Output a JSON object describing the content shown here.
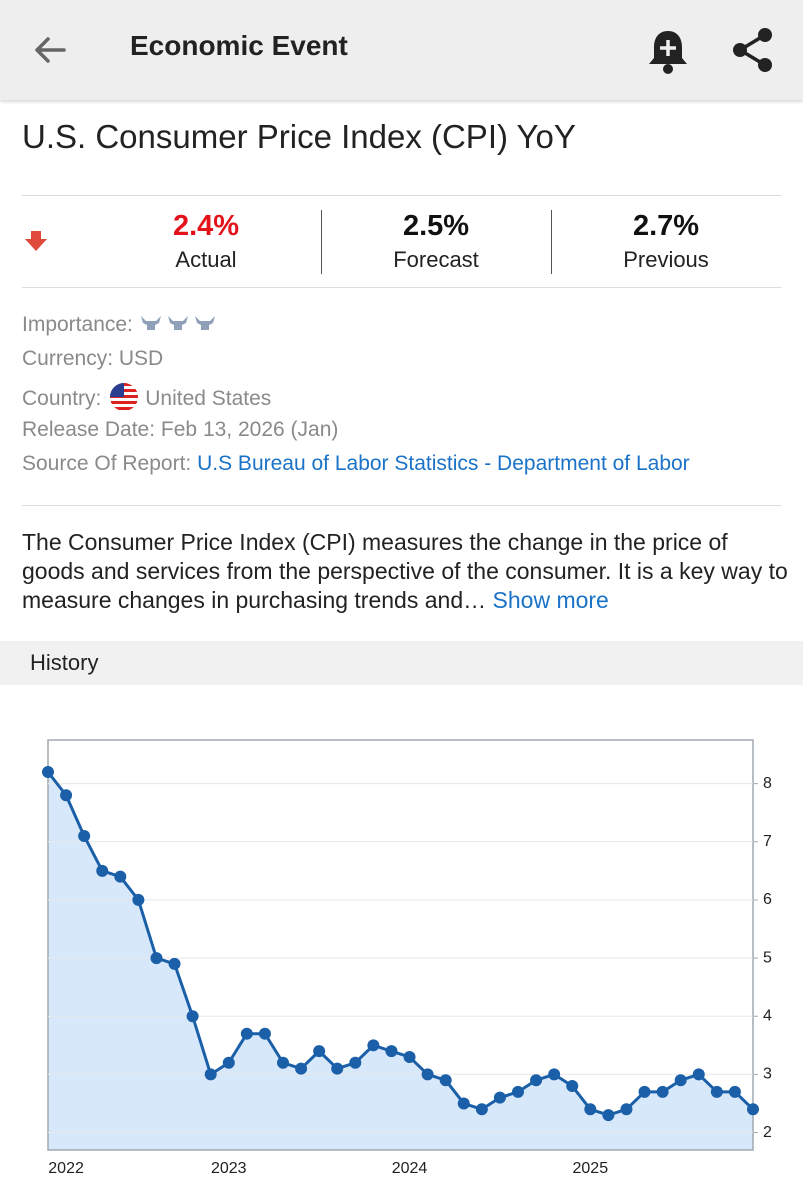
{
  "header": {
    "title": "Economic Event"
  },
  "event": {
    "title": "U.S. Consumer Price Index (CPI) YoY"
  },
  "stats": [
    {
      "value": "2.4%",
      "label": "Actual"
    },
    {
      "value": "2.5%",
      "label": "Forecast"
    },
    {
      "value": "2.7%",
      "label": "Previous"
    }
  ],
  "details": {
    "importance": {
      "label": "Importance:"
    },
    "currency": {
      "label": "Currency:",
      "value": "USD"
    },
    "country": {
      "label": "Country:",
      "value": "United States"
    },
    "release_date": {
      "label": "Release Date:",
      "value": "Feb 13, 2026 (Jan)"
    },
    "source": {
      "label": "Source Of Report:",
      "value": "U.S Bureau of Labor Statistics - Department of Labor"
    }
  },
  "description": {
    "text": "The Consumer Price Index (CPI) measures the change in the price of goods and services from the perspective of the consumer. It is a key way to measure changes in purchasing trends and…",
    "more": "Show more"
  },
  "history": {
    "title": "History"
  },
  "chart_data": {
    "type": "line",
    "categories": [
      null,
      "2022",
      null,
      null,
      null,
      null,
      null,
      null,
      null,
      null,
      "2023",
      null,
      null,
      null,
      null,
      null,
      null,
      null,
      null,
      null,
      "2024",
      null,
      null,
      null,
      null,
      null,
      null,
      null,
      null,
      null,
      "2025",
      null,
      null,
      null,
      null,
      null,
      null,
      null,
      null,
      null
    ],
    "series": [
      {
        "color": "#1a5fa8",
        "fill": "#d8e8fb",
        "values": [
          8.2,
          7.8,
          7.1,
          6.5,
          6.4,
          6.0,
          5.0,
          4.9,
          4.0,
          3.0,
          3.2,
          3.7,
          3.7,
          3.2,
          3.1,
          3.4,
          3.1,
          3.2,
          3.5,
          3.4,
          3.3,
          3.0,
          2.9,
          2.5,
          2.4,
          2.6,
          2.7,
          2.9,
          3.0,
          2.8,
          2.4,
          2.3,
          2.4,
          2.7,
          2.7,
          2.9,
          3.0,
          2.7,
          2.7,
          2.4
        ]
      }
    ],
    "ylim": [
      1.7,
      8.75
    ],
    "yticks": [
      2,
      3,
      4,
      5,
      6,
      7,
      8
    ],
    "grid": true,
    "y_axis_side": "right"
  }
}
